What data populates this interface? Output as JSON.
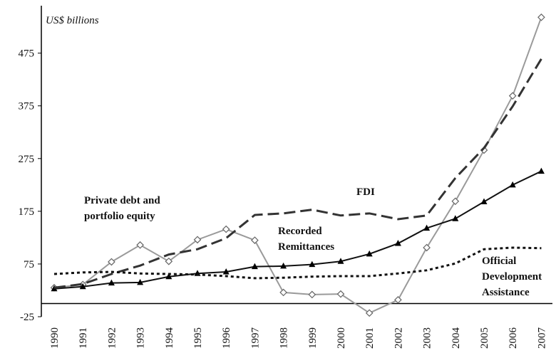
{
  "chart_data": {
    "type": "line",
    "y_label": "US$ billions",
    "categories": [
      "1990",
      "1991",
      "1992",
      "1993",
      "1994",
      "1995",
      "1996",
      "1997",
      "1998",
      "1999",
      "2000",
      "2001",
      "2002",
      "2003",
      "2004",
      "2005",
      "2006",
      "2007"
    ],
    "ylim": [
      -25,
      565
    ],
    "yticks": [
      -25,
      75,
      175,
      275,
      375,
      475
    ],
    "series": [
      {
        "label": [
          "Private debt and",
          "portfolio equity"
        ],
        "color": "#9a9a9a",
        "dash": "solid",
        "marker": "diamond",
        "values": [
          30,
          36,
          79,
          111,
          80,
          121,
          141,
          120,
          21,
          17,
          18,
          -18,
          7,
          106,
          194,
          291,
          394,
          543
        ]
      },
      {
        "label": [
          "Recorded",
          "Remittances"
        ],
        "color": "#111111",
        "dash": "solid",
        "marker": "triangle",
        "values": [
          28,
          32,
          39,
          40,
          51,
          57,
          60,
          70,
          71,
          74,
          80,
          94,
          114,
          143,
          161,
          193,
          225,
          251
        ]
      },
      {
        "label": [
          "FDI"
        ],
        "color": "#333333",
        "dash": "dashed",
        "marker": "none",
        "values": [
          30,
          37,
          56,
          72,
          93,
          103,
          124,
          168,
          171,
          178,
          167,
          171,
          160,
          167,
          238,
          295,
          374,
          464
        ]
      },
      {
        "label": [
          "Official",
          "Development",
          "Assistance"
        ],
        "color": "#111111",
        "dash": "dotted",
        "marker": "none",
        "values": [
          56,
          59,
          60,
          57,
          56,
          55,
          52,
          48,
          49,
          51,
          52,
          52,
          57,
          63,
          76,
          103,
          106,
          105
        ]
      }
    ]
  }
}
